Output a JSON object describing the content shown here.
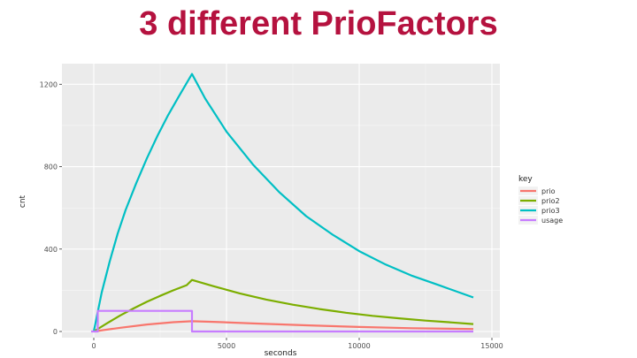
{
  "slide": {
    "title": "3 different PrioFactors"
  },
  "chart_data": {
    "type": "line",
    "title": "",
    "xlabel": "seconds",
    "ylabel": "cnt",
    "xlim": [
      -1200,
      15300
    ],
    "ylim": [
      -30,
      1300
    ],
    "x_ticks": [
      0,
      5000,
      10000,
      15000
    ],
    "x_tick_labels": [
      "0",
      "5000",
      "10000",
      "15000"
    ],
    "y_ticks": [
      0,
      400,
      800,
      1200
    ],
    "y_tick_labels": [
      "0",
      "400",
      "800",
      "1200"
    ],
    "grid": true,
    "background": "#ebebeb",
    "legend": {
      "title": "key",
      "position": "right"
    },
    "series": [
      {
        "name": "prio",
        "color": "#f8766d",
        "x": [
          0,
          1000,
          2000,
          3000,
          3700,
          4500,
          6000,
          8000,
          10000,
          12000,
          14300
        ],
        "y": [
          0,
          18,
          34,
          45,
          50,
          47,
          39,
          30,
          22,
          16,
          12
        ]
      },
      {
        "name": "prio2",
        "color": "#7cae00",
        "x": [
          0,
          500,
          1000,
          1500,
          2000,
          2500,
          3000,
          3500,
          3700,
          4500,
          5500,
          6500,
          7500,
          8500,
          9500,
          10500,
          11500,
          12500,
          13500,
          14300
        ],
        "y": [
          0,
          40,
          78,
          112,
          144,
          173,
          200,
          225,
          250,
          220,
          185,
          155,
          130,
          109,
          91,
          76,
          64,
          53,
          44,
          36
        ]
      },
      {
        "name": "prio3",
        "color": "#00bfc4",
        "x": [
          0,
          300,
          600,
          900,
          1200,
          1600,
          2000,
          2400,
          2800,
          3200,
          3700,
          4200,
          5000,
          6000,
          7000,
          8000,
          9000,
          10000,
          11000,
          12000,
          13000,
          14300
        ],
        "y": [
          0,
          190,
          340,
          475,
          590,
          720,
          840,
          950,
          1050,
          1140,
          1250,
          1130,
          970,
          810,
          675,
          560,
          470,
          390,
          325,
          270,
          225,
          165
        ]
      },
      {
        "name": "usage",
        "color": "#c77cff",
        "x": [
          -100,
          150,
          150,
          3700,
          3700,
          14300
        ],
        "y": [
          0,
          0,
          100,
          100,
          0,
          0
        ]
      }
    ]
  }
}
